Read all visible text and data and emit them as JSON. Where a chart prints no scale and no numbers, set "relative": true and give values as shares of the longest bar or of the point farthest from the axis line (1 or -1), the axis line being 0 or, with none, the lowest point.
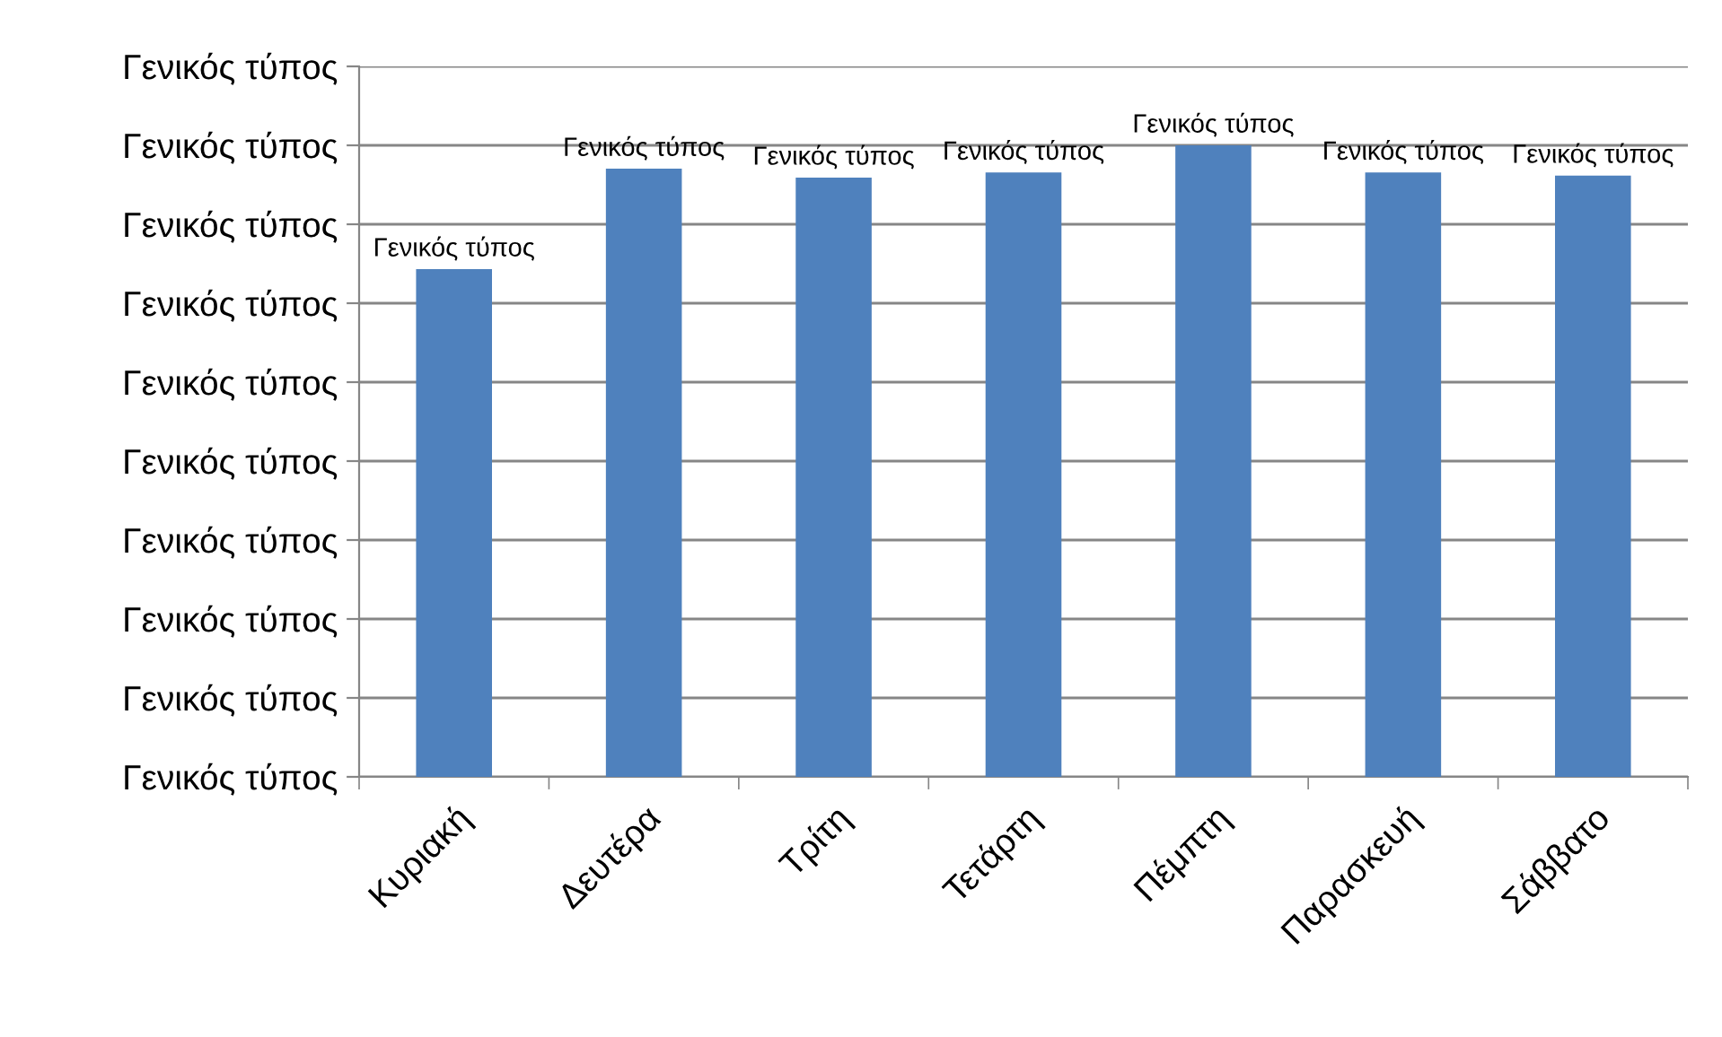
{
  "chart_data": {
    "type": "bar",
    "relative": true,
    "categories": [
      "Κυριακή",
      "Δευτέρα",
      "Τρίτη",
      "Τετάρτη",
      "Πέμπτη",
      "Παρασκευή",
      "Σάββατο"
    ],
    "values": [
      0.804,
      0.963,
      0.949,
      0.957,
      1,
      0.957,
      0.952
    ],
    "color": "#4f81bd",
    "annotations": [
      "Γενικός τύπος",
      "Γενικός τύπος",
      "Γενικός τύπος",
      "Γενικός τύπος",
      "Γενικός τύπος",
      "Γενικός τύπος",
      "Γενικός τύπος",
      "Γενικός τύπος",
      "Γενικός τύπος",
      "Γενικός τύπος",
      {
        "text": "Γενικός τύπος",
        "x": "Κυριακή",
        "y": 0.804
      },
      {
        "text": "Γενικός τύπος",
        "x": "Δευτέρα",
        "y": 0.963
      },
      {
        "text": "Γενικός τύπος",
        "x": "Τρίτη",
        "y": 0.949
      },
      {
        "text": "Γενικός τύπος",
        "x": "Τετάρτη",
        "y": 0.957
      },
      {
        "text": "Γενικός τύπος",
        "x": "Πέμπτη",
        "y": 1
      },
      {
        "text": "Γενικός τύπος",
        "x": "Παρασκευή",
        "y": 0.957
      },
      {
        "text": "Γενικός τύπος",
        "x": "Σάββατο",
        "y": 0.952
      }
    ],
    "grid": "y"
  }
}
